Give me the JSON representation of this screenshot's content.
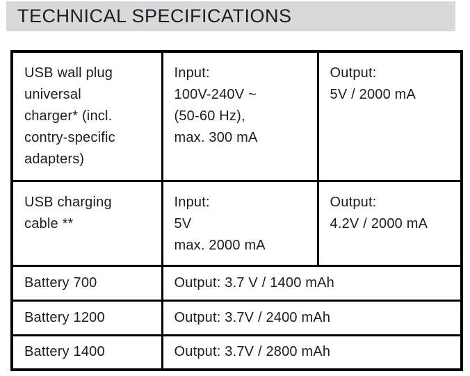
{
  "page": {
    "title": "TECHNICAL SPECIFICATIONS"
  },
  "colors": {
    "title_bg": "#d8d8d8",
    "text": "#1c1c26",
    "border": "#000000",
    "page_bg": "#ffffff"
  },
  "table": {
    "rows": [
      {
        "device": "USB wall plug\nuniversal\ncharger* (incl.\ncontry-specific\nadapters)",
        "input": "Input:\n100V-240V ~\n(50-60 Hz),\nmax. 300 mA",
        "output": "Output:\n5V / 2000 mA"
      },
      {
        "device": "USB charging\ncable **",
        "input": "Input:\n5V\nmax. 2000 mA",
        "output": "Output:\n4.2V / 2000 mA"
      },
      {
        "device": "Battery 700",
        "output_full": "Output: 3.7 V / 1400 mAh"
      },
      {
        "device": "Battery 1200",
        "output_full": "Output: 3.7V / 2400 mAh"
      },
      {
        "device": "Battery 1400",
        "output_full": "Output: 3.7V / 2800 mAh"
      }
    ]
  }
}
